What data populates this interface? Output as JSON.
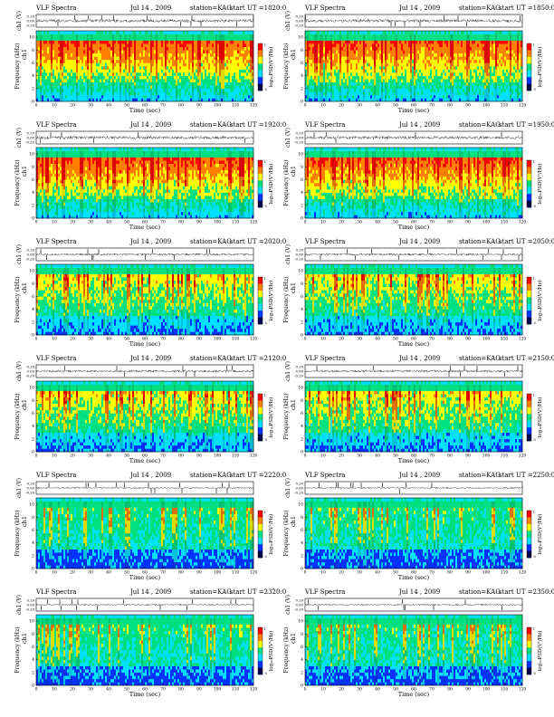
{
  "figure": {
    "rows": 6,
    "cols": 2
  },
  "chart_data": [
    {
      "type": "heatmap",
      "title": "VLF Spectra",
      "date": "Jul 14 , 2009",
      "station": "station=KAG",
      "start": "start UT =1820:0",
      "ch_ylabel": "ch1 (V)",
      "ch_ticks": [
        "0.20",
        "0.00",
        "-0.20"
      ],
      "ylabel": "Frequency (kHz)",
      "overlay_label": "ch1",
      "xlabel": "Time (sec)",
      "x_ticks": [
        0,
        10,
        20,
        30,
        40,
        50,
        60,
        70,
        80,
        90,
        100,
        110,
        120
      ],
      "y_ticks": [
        0,
        2,
        4,
        6,
        8,
        10
      ],
      "xlim": [
        0,
        120
      ],
      "ylim": [
        0,
        11
      ],
      "colorbar_label": "log₁₀PSD(V²/Hz)",
      "colorbar_ticks": [
        "1",
        "-5"
      ],
      "intensity": "high"
    },
    {
      "type": "heatmap",
      "title": "VLF Spectra",
      "date": "Jul 14 , 2009",
      "station": "station=KAG",
      "start": "start UT =1850:0",
      "ch_ylabel": "ch1 (V)",
      "ch_ticks": [
        "0.20",
        "0.00",
        "-0.20"
      ],
      "ylabel": "Frequency (kHz)",
      "overlay_label": "ch1",
      "xlabel": "Time (sec)",
      "x_ticks": [
        0,
        10,
        20,
        30,
        40,
        50,
        60,
        70,
        80,
        90,
        100,
        110,
        120
      ],
      "y_ticks": [
        0,
        2,
        4,
        6,
        8,
        10
      ],
      "xlim": [
        0,
        120
      ],
      "ylim": [
        0,
        11
      ],
      "colorbar_label": "log₁₀PSD(V²/Hz)",
      "colorbar_ticks": [
        "1",
        "-5"
      ],
      "intensity": "high"
    },
    {
      "type": "heatmap",
      "title": "VLF Spectra",
      "date": "Jul 14 , 2009",
      "station": "station=KAG",
      "start": "start UT =1920:0",
      "ch_ylabel": "ch1 (V)",
      "ch_ticks": [
        "0.20",
        "0.00",
        "-0.20"
      ],
      "ylabel": "Frequency (kHz)",
      "overlay_label": "ch1",
      "xlabel": "Time (sec)",
      "x_ticks": [
        0,
        10,
        20,
        30,
        40,
        50,
        60,
        70,
        80,
        90,
        100,
        110,
        120
      ],
      "y_ticks": [
        0,
        2,
        4,
        6,
        8,
        10
      ],
      "xlim": [
        0,
        120
      ],
      "ylim": [
        0,
        11
      ],
      "colorbar_label": "log₁₀PSD(V²/Hz)",
      "colorbar_ticks": [
        "1",
        "-5"
      ],
      "intensity": "high"
    },
    {
      "type": "heatmap",
      "title": "VLF Spectra",
      "date": "Jul 14 , 2009",
      "station": "station=KAG",
      "start": "start UT =1950:0",
      "ch_ylabel": "ch1 (V)",
      "ch_ticks": [
        "0.20",
        "0.00",
        "-0.20"
      ],
      "ylabel": "Frequency (kHz)",
      "overlay_label": "ch1",
      "xlabel": "Time (sec)",
      "x_ticks": [
        0,
        10,
        20,
        30,
        40,
        50,
        60,
        70,
        80,
        90,
        100,
        110,
        120
      ],
      "y_ticks": [
        0,
        2,
        4,
        6,
        8,
        10
      ],
      "xlim": [
        0,
        120
      ],
      "ylim": [
        0,
        11
      ],
      "colorbar_label": "log₁₀PSD(V²/Hz)",
      "colorbar_ticks": [
        "1",
        "-5"
      ],
      "intensity": "high"
    },
    {
      "type": "heatmap",
      "title": "VLF Spectra",
      "date": "Jul 14 , 2009",
      "station": "station=KAG",
      "start": "start UT =2020:0",
      "ch_ylabel": "ch1 (V)",
      "ch_ticks": [
        "0.20",
        "0.00",
        "-0.20"
      ],
      "ylabel": "Frequency (kHz)",
      "overlay_label": "ch1",
      "xlabel": "Time (sec)",
      "x_ticks": [
        0,
        10,
        20,
        30,
        40,
        50,
        60,
        70,
        80,
        90,
        100,
        110,
        120
      ],
      "y_ticks": [
        0,
        2,
        4,
        6,
        8,
        10
      ],
      "xlim": [
        0,
        120
      ],
      "ylim": [
        0,
        11
      ],
      "colorbar_label": "log₁₀PSD(V²/Hz)",
      "colorbar_ticks": [
        "1",
        "-5"
      ],
      "intensity": "medium"
    },
    {
      "type": "heatmap",
      "title": "VLF Spectra",
      "date": "Jul 14 , 2009",
      "station": "station=KAG",
      "start": "start UT =2050:0",
      "ch_ylabel": "ch1 (V)",
      "ch_ticks": [
        "0.20",
        "0.00",
        "-0.20"
      ],
      "ylabel": "Frequency (kHz)",
      "overlay_label": "ch1",
      "xlabel": "Time (sec)",
      "x_ticks": [
        0,
        10,
        20,
        30,
        40,
        50,
        60,
        70,
        80,
        90,
        100,
        110,
        120
      ],
      "y_ticks": [
        0,
        2,
        4,
        6,
        8,
        10
      ],
      "xlim": [
        0,
        120
      ],
      "ylim": [
        0,
        11
      ],
      "colorbar_label": "log₁₀PSD(V²/Hz)",
      "colorbar_ticks": [
        "1",
        "-5"
      ],
      "intensity": "medium"
    },
    {
      "type": "heatmap",
      "title": "VLF Spectra",
      "date": "Jul 14 , 2009",
      "station": "station=KAG",
      "start": "start UT =2120:0",
      "ch_ylabel": "ch1 (V)",
      "ch_ticks": [
        "0.20",
        "0.00",
        "-0.20"
      ],
      "ylabel": "Frequency (kHz)",
      "overlay_label": "ch1",
      "xlabel": "Time (sec)",
      "x_ticks": [
        0,
        10,
        20,
        30,
        40,
        50,
        60,
        70,
        80,
        90,
        100,
        110,
        120
      ],
      "y_ticks": [
        0,
        2,
        4,
        6,
        8,
        10
      ],
      "xlim": [
        0,
        120
      ],
      "ylim": [
        0,
        11
      ],
      "colorbar_label": "log₁₀PSD(V²/Hz)",
      "colorbar_ticks": [
        "1",
        "-5"
      ],
      "intensity": "medium"
    },
    {
      "type": "heatmap",
      "title": "VLF Spectra",
      "date": "Jul 14 , 2009",
      "station": "station=KAG",
      "start": "start UT =2150:0",
      "ch_ylabel": "ch1 (V)",
      "ch_ticks": [
        "0.20",
        "0.00",
        "-0.20"
      ],
      "ylabel": "Frequency (kHz)",
      "overlay_label": "ch1",
      "xlabel": "Time (sec)",
      "x_ticks": [
        0,
        10,
        20,
        30,
        40,
        50,
        60,
        70,
        80,
        90,
        100,
        110,
        120
      ],
      "y_ticks": [
        0,
        2,
        4,
        6,
        8,
        10
      ],
      "xlim": [
        0,
        120
      ],
      "ylim": [
        0,
        11
      ],
      "colorbar_label": "log₁₀PSD(V²/Hz)",
      "colorbar_ticks": [
        "1",
        "-5"
      ],
      "intensity": "medium"
    },
    {
      "type": "heatmap",
      "title": "VLF Spectra",
      "date": "Jul 14 , 2009",
      "station": "station=KAG",
      "start": "start UT =2220:0",
      "ch_ylabel": "ch1 (V)",
      "ch_ticks": [
        "0.20",
        "0.00",
        "-0.20"
      ],
      "ylabel": "Frequency (kHz)",
      "overlay_label": "ch1",
      "xlabel": "Time (sec)",
      "x_ticks": [
        0,
        10,
        20,
        30,
        40,
        50,
        60,
        70,
        80,
        90,
        100,
        110,
        120
      ],
      "y_ticks": [
        0,
        2,
        4,
        6,
        8,
        10
      ],
      "xlim": [
        0,
        120
      ],
      "ylim": [
        0,
        11
      ],
      "colorbar_label": "log₁₀PSD(V²/Hz)",
      "colorbar_ticks": [
        "1",
        "-5"
      ],
      "intensity": "low"
    },
    {
      "type": "heatmap",
      "title": "VLF Spectra",
      "date": "Jul 14 , 2009",
      "station": "station=KAG",
      "start": "start UT =2250:0",
      "ch_ylabel": "ch1 (V)",
      "ch_ticks": [
        "0.20",
        "0.00",
        "-0.20"
      ],
      "ylabel": "Frequency (kHz)",
      "overlay_label": "ch1",
      "xlabel": "Time (sec)",
      "x_ticks": [
        0,
        10,
        20,
        30,
        40,
        50,
        60,
        70,
        80,
        90,
        100,
        110,
        120
      ],
      "y_ticks": [
        0,
        2,
        4,
        6,
        8,
        10
      ],
      "xlim": [
        0,
        120
      ],
      "ylim": [
        0,
        11
      ],
      "colorbar_label": "log₁₀PSD(V²/Hz)",
      "colorbar_ticks": [
        "1",
        "-5"
      ],
      "intensity": "low"
    },
    {
      "type": "heatmap",
      "title": "VLF Spectra",
      "date": "Jul 14 , 2009",
      "station": "station=KAG",
      "start": "start UT =2320:0",
      "ch_ylabel": "ch1 (V)",
      "ch_ticks": [
        "0.20",
        "0.00",
        "-0.20"
      ],
      "ylabel": "Frequency (kHz)",
      "overlay_label": "ch1",
      "xlabel": "Time (sec)",
      "x_ticks": [
        0,
        10,
        20,
        30,
        40,
        50,
        60,
        70,
        80,
        90,
        100,
        110,
        120
      ],
      "y_ticks": [
        0,
        2,
        4,
        6,
        8,
        10
      ],
      "xlim": [
        0,
        120
      ],
      "ylim": [
        0,
        11
      ],
      "colorbar_label": "log₁₀PSD(V²/Hz)",
      "colorbar_ticks": [
        "1",
        "-5"
      ],
      "intensity": "low"
    },
    {
      "type": "heatmap",
      "title": "VLF Spectra",
      "date": "Jul 14 , 2009",
      "station": "station=KAG",
      "start": "start UT =2350:0",
      "ch_ylabel": "ch1 (V)",
      "ch_ticks": [
        "0.20",
        "0.00",
        "-0.20"
      ],
      "ylabel": "Frequency (kHz)",
      "overlay_label": "ch1",
      "xlabel": "Time (sec)",
      "x_ticks": [
        0,
        10,
        20,
        30,
        40,
        50,
        60,
        70,
        80,
        90,
        100,
        110,
        120
      ],
      "y_ticks": [
        0,
        2,
        4,
        6,
        8,
        10
      ],
      "xlim": [
        0,
        120
      ],
      "ylim": [
        0,
        11
      ],
      "colorbar_label": "log₁₀PSD(V²/Hz)",
      "colorbar_ticks": [
        "1",
        "-5"
      ],
      "intensity": "low"
    }
  ],
  "colormap": [
    "#00004a",
    "#0033ff",
    "#00e0ff",
    "#00e080",
    "#ffff00",
    "#ff8000",
    "#ff0000"
  ]
}
